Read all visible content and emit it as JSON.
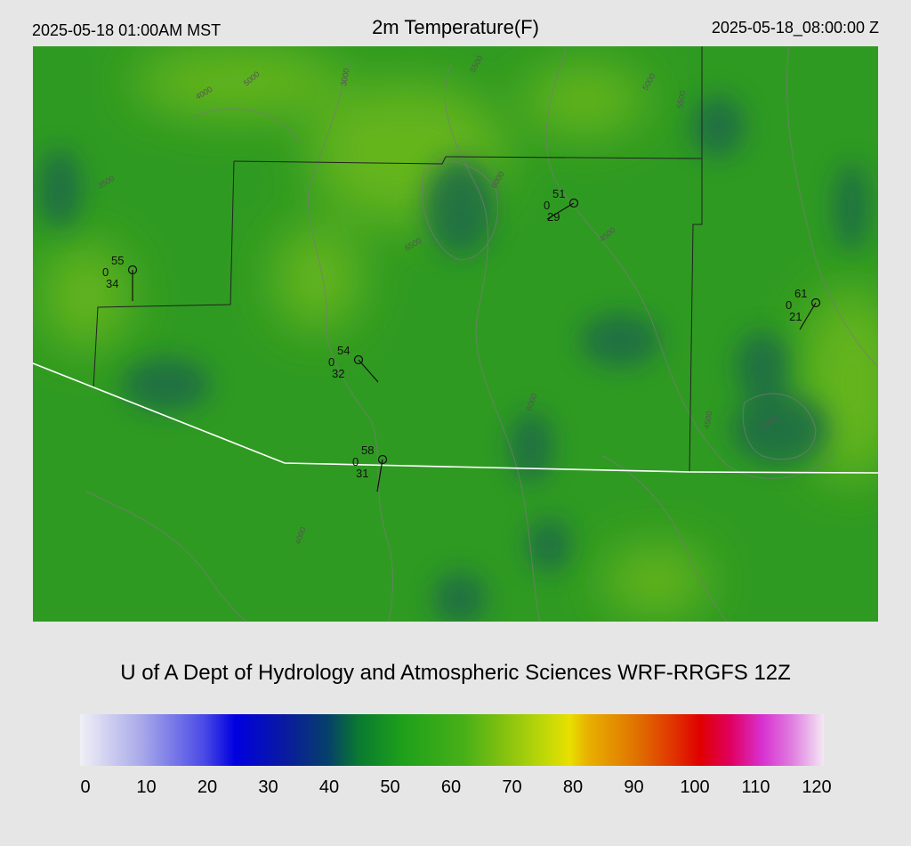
{
  "header": {
    "local_time": "2025-05-18 01:00AM MST",
    "title": "2m Temperature(F)",
    "utc_time": "2025-05-18_08:00:00 Z"
  },
  "credit": "U of A Dept of Hydrology and Atmospheric Sciences WRF-RRGFS 12Z",
  "colorbar": {
    "ticks": [
      "0",
      "10",
      "20",
      "30",
      "40",
      "50",
      "60",
      "70",
      "80",
      "90",
      "100",
      "110",
      "120"
    ],
    "range": [
      0,
      120
    ],
    "stops": [
      {
        "v": 0,
        "c": "#f0f0f6"
      },
      {
        "v": 10,
        "c": "#a8a8ea"
      },
      {
        "v": 20,
        "c": "#4a4ae6"
      },
      {
        "v": 25,
        "c": "#0000e0"
      },
      {
        "v": 33,
        "c": "#0a1aa0"
      },
      {
        "v": 40,
        "c": "#06406a"
      },
      {
        "v": 45,
        "c": "#0a7a30"
      },
      {
        "v": 52,
        "c": "#1ea01a"
      },
      {
        "v": 62,
        "c": "#48b018"
      },
      {
        "v": 68,
        "c": "#80c010"
      },
      {
        "v": 75,
        "c": "#c0d808"
      },
      {
        "v": 79,
        "c": "#e8e000"
      },
      {
        "v": 82,
        "c": "#e8b000"
      },
      {
        "v": 90,
        "c": "#e07000"
      },
      {
        "v": 96,
        "c": "#e03000"
      },
      {
        "v": 100,
        "c": "#e00000"
      },
      {
        "v": 105,
        "c": "#e00060"
      },
      {
        "v": 110,
        "c": "#d830d0"
      },
      {
        "v": 115,
        "c": "#e080e0"
      },
      {
        "v": 120,
        "c": "#f4e8f4"
      }
    ]
  },
  "colors": {
    "background": "#e6e6e6",
    "map_base": "#2f9a22",
    "warm_patch": "#6ab81a",
    "cool_patch": "#1a6a46",
    "boundary_county": "#222222",
    "boundary_state": "#ffffff",
    "contour": "#7a7a7a"
  },
  "stations": [
    {
      "temp": "55",
      "code": "0",
      "dew": "34"
    },
    {
      "temp": "51",
      "code": "0",
      "dew": "29"
    },
    {
      "temp": "61",
      "code": "0",
      "dew": "21"
    },
    {
      "temp": "54",
      "code": "0",
      "dew": "32"
    },
    {
      "temp": "58",
      "code": "0",
      "dew": "31"
    }
  ],
  "contour_labels": [
    "3000",
    "4000",
    "5000",
    "5500",
    "6000",
    "6500",
    "4500",
    "5000",
    "5500",
    "6000",
    "4500",
    "5000",
    "3500",
    "4000"
  ]
}
